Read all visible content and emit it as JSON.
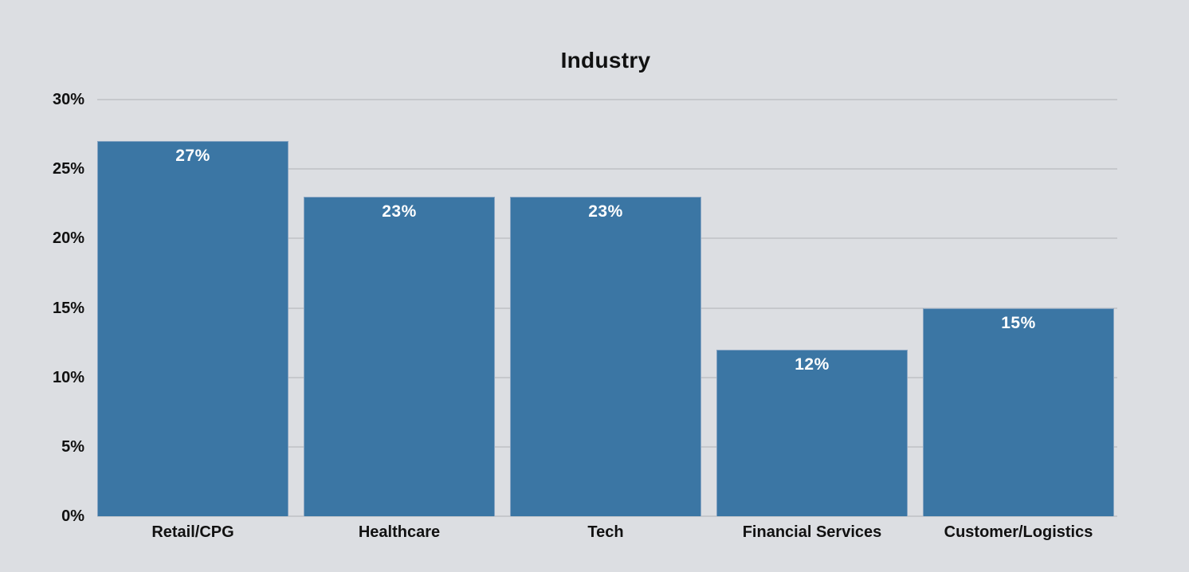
{
  "chart_data": {
    "type": "bar",
    "title": "Industry",
    "categories": [
      "Retail/CPG",
      "Healthcare",
      "Tech",
      "Financial Services",
      "Customer/Logistics"
    ],
    "values": [
      27,
      23,
      23,
      12,
      15
    ],
    "value_labels": [
      "27%",
      "23%",
      "23%",
      "12%",
      "15%"
    ],
    "xlabel": "",
    "ylabel": "",
    "ylim": [
      0,
      30
    ],
    "yticks": [
      0,
      5,
      10,
      15,
      20,
      25,
      30
    ],
    "ytick_labels": [
      "0%",
      "5%",
      "10%",
      "15%",
      "20%",
      "25%",
      "30%"
    ],
    "grid": true,
    "legend": false,
    "colors": {
      "background": "#dcdee2",
      "bar_fill": "#3b76a4",
      "bar_border": "#87a4c2",
      "gridline": "#c6c8cc",
      "title_text": "#111111",
      "axis_text": "#111111",
      "bar_label_text": "#ffffff"
    }
  }
}
